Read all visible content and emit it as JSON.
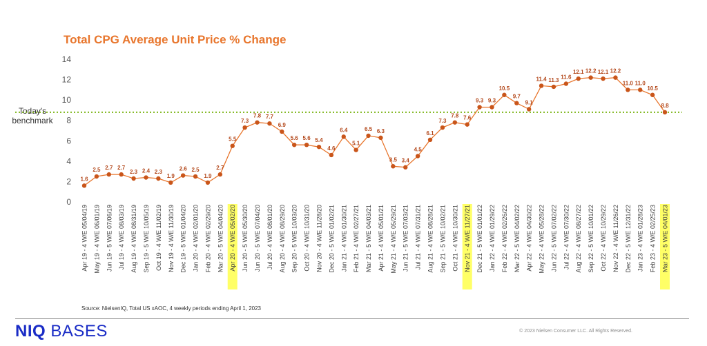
{
  "chart_data": {
    "type": "line",
    "title": "Total CPG Average Unit Price % Change",
    "xlabel": "",
    "ylabel": "",
    "ylim": [
      0,
      14
    ],
    "yticks": [
      0,
      2,
      4,
      6,
      8,
      10,
      12,
      14
    ],
    "grid": false,
    "colors": {
      "line": "#e8762d",
      "marker": "#c9551a",
      "label": "#b3471a",
      "benchmark": "#7cb518",
      "highlight": "#ffff66",
      "title": "#e8762d"
    },
    "categories": [
      "Apr 19 - 4 W/E 05/04/19",
      "May 19 - 4 W/E 06/01/19",
      "Jun 19 - 5 W/E 07/06/19",
      "Jul 19 - 4 W/E 08/03/19",
      "Aug 19 - 4 W/E 08/31/19",
      "Sep 19 - 5 W/E 10/05/19",
      "Oct 19 - 4 W/E 11/02/19",
      "Nov 19 - 4 W/E 11/30/19",
      "Dec 19 - 5 W/E 01/04/20",
      "Jan 20 - 4 W/E 02/01/20",
      "Feb 20 - 4 W/E 02/29/20",
      "Mar 20 - 5 W/E 04/04/20",
      "Apr 20 - 4 W/E 05/02/20",
      "Jun 20 - 5 W/E 05/30/20",
      "Jun 20 - 5 W/E 07/04/20",
      "Jul 20 - 4 W/E 08/01/20",
      "Aug 20 - 4 W/E 08/29/20",
      "Sep 20 - 5 W/E 10/03/20",
      "Oct 20 - 4 W/E 10/31/20",
      "Nov 20 - 4 W/E 11/28/20",
      "Dec 20 - 5 W/E 01/02/21",
      "Jan 21 - 4 W/E 01/30/21",
      "Feb 21 - 4 W/E 02/27/21",
      "Mar 21 - 5 W/E 04/03/21",
      "Apr 21 - 4 W/E 05/01/21",
      "May 21 - 4 W/E 05/29/21",
      "Jun 21 - 5 W/E 07/03/21",
      "Jul 21 - 4 W/E 07/31/21",
      "Aug 21 - 4 W/E 08/28/21",
      "Sep 21 - 5 W/E 10/02/21",
      "Oct 21 - 4 W/E 10/30/21",
      "Nov 21 - 4 W/E 11/27/21",
      "Dec 21 - 5 W/E 01/01/22",
      "Jan 22 - 4 W/E 01/29/22",
      "Feb 22 - 4 W/E 02/26/22",
      "Mar 22 - 5 W/E 04/02/22",
      "Apr 22 - 4 W/E 04/30/22",
      "May 22 - 4 W/E 05/28/22",
      "Jun 22 - 5 W/E 07/02/22",
      "Jul 22 - 4 W/E 07/30/22",
      "Aug 22 - 4 W/E 08/27/22",
      "Sep 22 - 5 W/E 10/01/22",
      "Oct 22 - 4 W/E 10/29/22",
      "Nov 22 - 4 W/E 11/26/22",
      "Dec 22 - 5 W/E 12/31/22",
      "Jan 23 - 4 W/E 01/28/23",
      "Feb 23 - 4 W/E 02/25/23",
      "Mar 23 - 5 W/E 04/01/23"
    ],
    "series": [
      {
        "values": [
          1.6,
          2.5,
          2.7,
          2.7,
          2.3,
          2.4,
          2.3,
          1.9,
          2.6,
          2.5,
          1.9,
          2.7,
          5.5,
          7.3,
          7.8,
          7.7,
          6.9,
          5.6,
          5.6,
          5.4,
          4.6,
          6.4,
          5.1,
          6.5,
          6.3,
          3.5,
          3.4,
          4.5,
          6.1,
          7.3,
          7.8,
          7.6,
          9.3,
          9.3,
          10.5,
          9.7,
          9.1,
          11.4,
          11.3,
          11.6,
          12.1,
          12.2,
          12.1,
          12.2,
          11.0,
          11.0,
          10.5,
          8.8
        ]
      }
    ],
    "highlighted_categories": [
      "Apr 20 - 4 W/E 05/02/20",
      "Nov 21 - 4 W/E 11/27/21",
      "Mar 23 - 5 W/E 04/01/23"
    ],
    "benchmark": {
      "label": "Today's benchmark",
      "value": 8.8
    }
  },
  "source_note": "Source: NielsenIQ, Total US xAOC,  4 weekly periods ending April 1,  2023",
  "footer": {
    "logo_bold": "NIQ",
    "logo_rest": " BASES",
    "copyright": "© 2023 Nielsen Consumer LLC. All Rights Reserved."
  }
}
